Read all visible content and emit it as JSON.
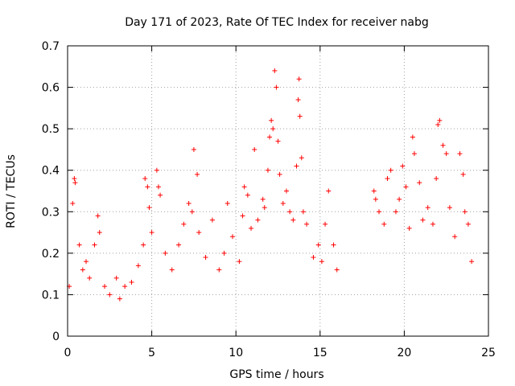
{
  "chart_data": {
    "type": "scatter",
    "title": "Day 171 of 2023, Rate Of TEC Index for receiver nabg",
    "xlabel": "GPS time / hours",
    "ylabel": "ROTI / TECUs",
    "xlim": [
      0,
      25
    ],
    "ylim": [
      0,
      0.7
    ],
    "xticks": [
      0,
      5,
      10,
      15,
      20,
      25
    ],
    "xtick_labels": [
      "0",
      "5",
      "10",
      "15",
      "20",
      "25"
    ],
    "yticks": [
      0,
      0.1,
      0.2,
      0.3,
      0.4,
      0.5,
      0.6,
      0.7
    ],
    "ytick_labels": [
      "0",
      "0.1",
      "0.2",
      "0.3",
      "0.4",
      "0.5",
      "0.6",
      "0.7"
    ],
    "grid": true,
    "marker": "+",
    "marker_color": "#ff0000",
    "series": [
      {
        "x": [
          0.1,
          0.3,
          0.4,
          0.45,
          0.7,
          0.9,
          1.1,
          1.3,
          1.6,
          1.8,
          1.9,
          2.2,
          2.5,
          2.9,
          3.1,
          3.4,
          3.8,
          4.2,
          4.5,
          4.6,
          4.75,
          4.85,
          5.0,
          5.3,
          5.4,
          5.5,
          5.8,
          6.2,
          6.6,
          6.9,
          7.2,
          7.4,
          7.5,
          7.7,
          7.8,
          8.2,
          8.6,
          9.0,
          9.3,
          9.5,
          9.8,
          10.2,
          10.4,
          10.5,
          10.7,
          10.9,
          11.1,
          11.3,
          11.6,
          11.7,
          11.9,
          12.0,
          12.1,
          12.2,
          12.3,
          12.4,
          12.5,
          12.6,
          12.8,
          13.0,
          13.2,
          13.4,
          13.6,
          13.7,
          13.75,
          13.8,
          13.9,
          14.0,
          14.2,
          14.6,
          14.9,
          15.1,
          15.3,
          15.5,
          15.8,
          16.0,
          18.2,
          18.3,
          18.5,
          18.8,
          19.0,
          19.2,
          19.5,
          19.7,
          19.9,
          20.1,
          20.3,
          20.5,
          20.6,
          20.9,
          21.1,
          21.4,
          21.7,
          21.9,
          22.0,
          22.1,
          22.3,
          22.5,
          22.7,
          23.0,
          23.3,
          23.5,
          23.6,
          23.8,
          24.0
        ],
        "y": [
          0.12,
          0.32,
          0.38,
          0.37,
          0.22,
          0.16,
          0.18,
          0.14,
          0.22,
          0.29,
          0.25,
          0.12,
          0.1,
          0.14,
          0.09,
          0.12,
          0.13,
          0.17,
          0.22,
          0.38,
          0.36,
          0.31,
          0.25,
          0.4,
          0.36,
          0.34,
          0.2,
          0.16,
          0.22,
          0.27,
          0.32,
          0.3,
          0.45,
          0.39,
          0.25,
          0.19,
          0.28,
          0.16,
          0.2,
          0.32,
          0.24,
          0.18,
          0.29,
          0.36,
          0.34,
          0.26,
          0.45,
          0.28,
          0.33,
          0.31,
          0.4,
          0.48,
          0.52,
          0.5,
          0.64,
          0.6,
          0.47,
          0.39,
          0.32,
          0.35,
          0.3,
          0.28,
          0.41,
          0.57,
          0.62,
          0.53,
          0.43,
          0.3,
          0.27,
          0.19,
          0.22,
          0.18,
          0.27,
          0.35,
          0.22,
          0.16,
          0.35,
          0.33,
          0.3,
          0.27,
          0.38,
          0.4,
          0.3,
          0.33,
          0.41,
          0.36,
          0.26,
          0.48,
          0.44,
          0.37,
          0.28,
          0.31,
          0.27,
          0.38,
          0.51,
          0.52,
          0.46,
          0.44,
          0.31,
          0.24,
          0.44,
          0.39,
          0.3,
          0.27,
          0.18
        ]
      }
    ]
  }
}
